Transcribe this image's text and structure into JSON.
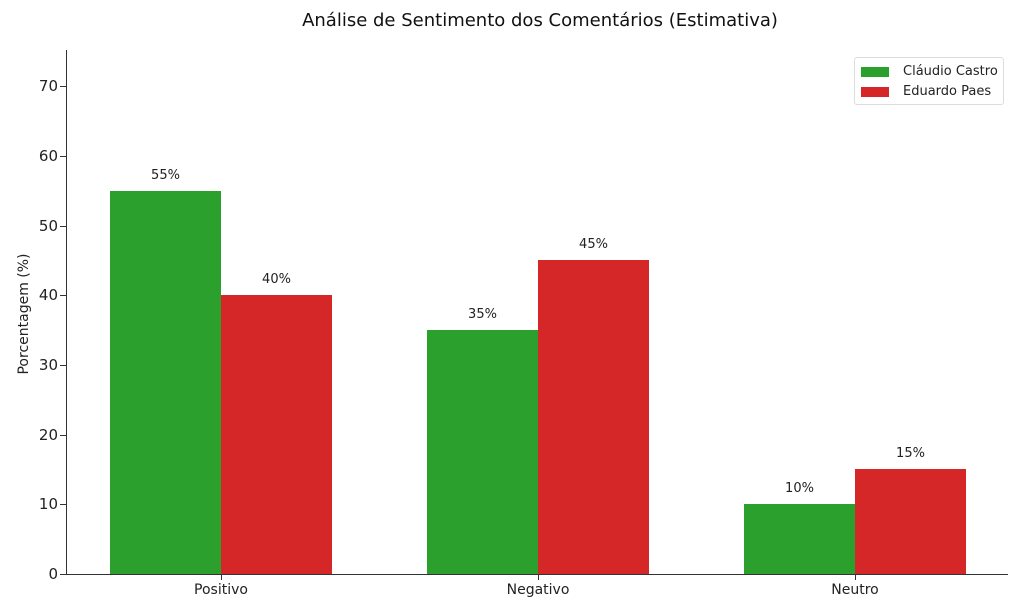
{
  "chart_data": {
    "type": "bar",
    "title": "Análise de Sentimento dos Comentários (Estimativa)",
    "xlabel": "",
    "ylabel": "Porcentagem (%)",
    "categories": [
      "Positivo",
      "Negativo",
      "Neutro"
    ],
    "series": [
      {
        "name": "Cláudio Castro",
        "color": "#2ca02c",
        "values": [
          55,
          35,
          10
        ],
        "labels": [
          "55%",
          "35%",
          "10%"
        ]
      },
      {
        "name": "Eduardo Paes",
        "color": "#d62728",
        "values": [
          40,
          45,
          15
        ],
        "labels": [
          "40%",
          "45%",
          "15%"
        ]
      }
    ],
    "ylim": [
      0,
      75
    ],
    "yticks": [
      "0",
      "10",
      "20",
      "30",
      "40",
      "50",
      "60",
      "70"
    ],
    "grid": false,
    "legend_position": "upper right"
  }
}
